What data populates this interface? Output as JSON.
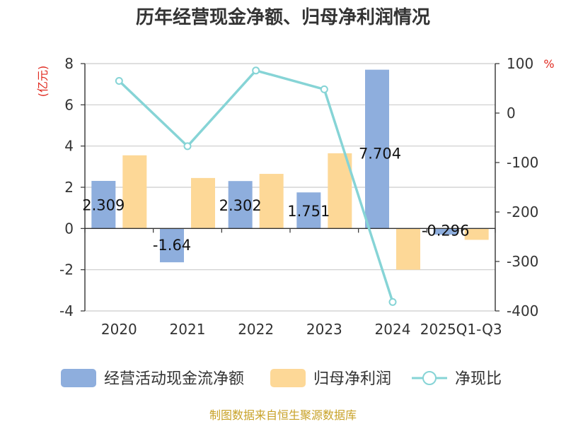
{
  "chart_data": {
    "type": "bar",
    "title": "历年经营现金净额、归母净利润情况",
    "categories": [
      "2020",
      "2021",
      "2022",
      "2023",
      "2024",
      "2025Q1-Q3"
    ],
    "series": [
      {
        "name": "经营活动现金流净额",
        "type": "bar",
        "axis": "left",
        "color": "#8eaedd",
        "values": [
          2.309,
          -1.64,
          2.302,
          1.751,
          7.704,
          -0.296
        ],
        "labels": [
          "2.309",
          "-1.64",
          "2.302",
          "1.751",
          "7.704",
          "-0.296"
        ]
      },
      {
        "name": "归母净利润",
        "type": "bar",
        "axis": "left",
        "color": "#fdd897",
        "values": [
          3.55,
          2.45,
          2.65,
          3.65,
          -2.0,
          -0.55
        ]
      },
      {
        "name": "净现比",
        "type": "line",
        "axis": "right",
        "color": "#86d4d6",
        "values": [
          65,
          -67,
          86,
          48,
          -382,
          null
        ]
      }
    ],
    "y_left": {
      "unit": "(亿元)",
      "range": [
        -4,
        8
      ],
      "ticks": [
        "-4",
        "-2",
        "0",
        "2",
        "4",
        "6",
        "8"
      ]
    },
    "y_right": {
      "unit": "%",
      "range": [
        -400,
        100
      ],
      "ticks": [
        "-400",
        "-300",
        "-200",
        "-100",
        "0",
        "100"
      ]
    },
    "grid": true,
    "legend_position": "bottom"
  },
  "source_note": "制图数据来自恒生聚源数据库"
}
